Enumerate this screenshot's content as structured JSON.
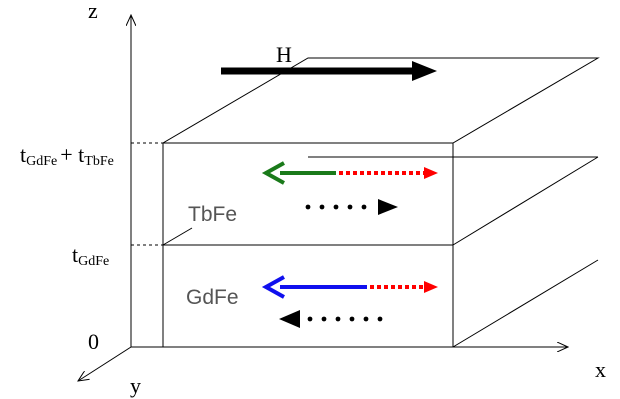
{
  "axes": {
    "z_label": "z",
    "x_label": "x",
    "y_label": "y",
    "origin_label": "0"
  },
  "thickness_labels": {
    "top_t1": "t",
    "top_sub1": "GdFe",
    "top_plus": "+ t",
    "top_sub2": "TbFe",
    "mid_t": "t",
    "mid_sub": "GdFe"
  },
  "field": {
    "label": "H"
  },
  "layers": {
    "upper": "TbFe",
    "lower": "GdFe"
  },
  "colors": {
    "outline": "#000000",
    "tbfe_arrow": "#1a7a1a",
    "gdfe_arrow": "#1010ee",
    "dotted_red": "#ff0000",
    "dotted_black": "#000000",
    "layer_label": "#555555"
  }
}
